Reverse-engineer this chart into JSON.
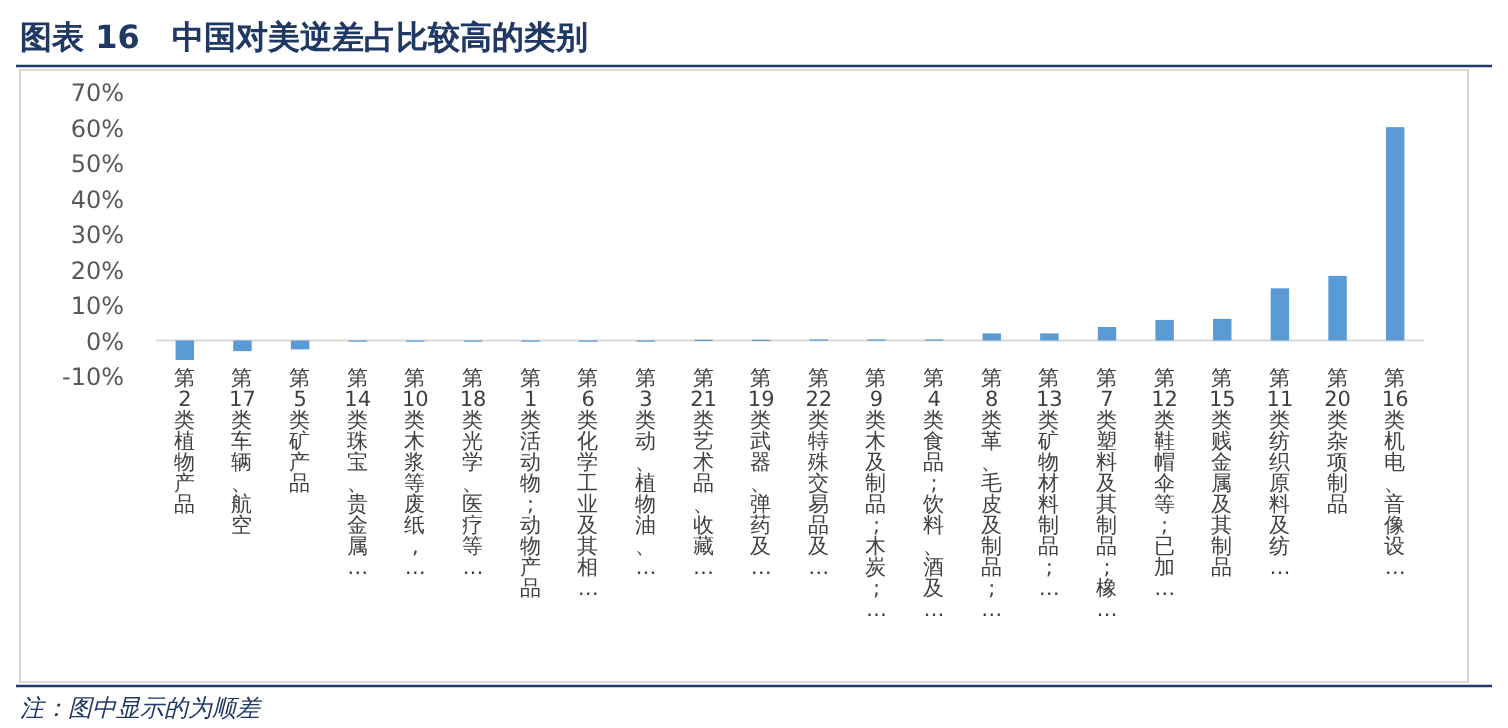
{
  "chart_data": {
    "type": "bar",
    "title": "图表 16　中国对美逆差占比较高的类别",
    "categories": [
      "第2类植物产品",
      "第17类车辆、航空",
      "第5类矿产品",
      "第14类珠宝、贵金属…",
      "第10类木浆等废纸,…",
      "第18类光学、医疗等…",
      "第1类活动物;动物产品",
      "第6类化学工业及其相…",
      "第3类动、植物油、…",
      "第21类艺术品、收藏…",
      "第19类武器、弹药及…",
      "第22类特殊交易品及…",
      "第9类木及制品;木炭;…",
      "第4类食品;饮料、酒及…",
      "第8类革、毛皮及制品;…",
      "第13类矿物材料制品;…",
      "第7类塑料及其制品;橡…",
      "第12类鞋帽伞等;已加…",
      "第15类贱金属及其制品",
      "第11类纺织原料及纺…",
      "第20类杂项制品",
      "第16类机电、音像设…"
    ],
    "values": [
      -5.5,
      -3,
      -2.5,
      -0.3,
      -0.2,
      -0.1,
      0,
      -0.1,
      -0.1,
      0.2,
      0.2,
      0.3,
      0.3,
      0.3,
      2,
      2,
      3.8,
      5.8,
      6.1,
      14.7,
      18.2,
      60.1
    ],
    "color": "#5b9bd5",
    "ylim": [
      -10,
      70
    ],
    "yticks": [
      {
        "value": -10,
        "label": "-10%"
      },
      {
        "value": 0,
        "label": "0%"
      },
      {
        "value": 10,
        "label": "10%"
      },
      {
        "value": 20,
        "label": "20%"
      },
      {
        "value": 30,
        "label": "30%"
      },
      {
        "value": 40,
        "label": "40%"
      },
      {
        "value": 50,
        "label": "50%"
      },
      {
        "value": 60,
        "label": "60%"
      },
      {
        "value": 70,
        "label": "70%"
      }
    ],
    "annotations": [
      "注：图中显示的为顺差"
    ]
  }
}
